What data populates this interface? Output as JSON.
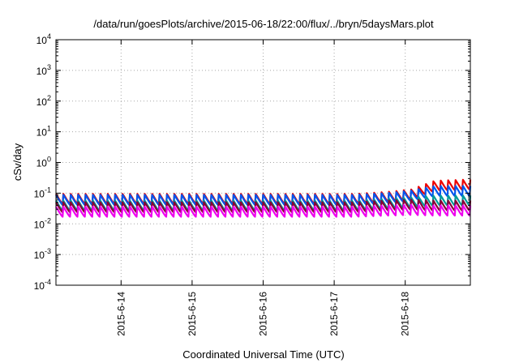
{
  "chart_data": {
    "type": "line",
    "title": "/data/run/goesPlots/archive/2015-06-18/22:00/flux/../bryn/5daysMars.plot",
    "xlabel": "Coordinated Universal Time (UTC)",
    "ylabel": "cSv/day",
    "yscale": "log",
    "ylim": [
      0.0001,
      10000
    ],
    "xlim": [
      "2015-06-13 02:00",
      "2015-06-18 22:00"
    ],
    "y_ticks": [
      {
        "base": "10",
        "exp": "-4"
      },
      {
        "base": "10",
        "exp": "-3"
      },
      {
        "base": "10",
        "exp": "-2"
      },
      {
        "base": "10",
        "exp": "-1"
      },
      {
        "base": "10",
        "exp": "0"
      },
      {
        "base": "10",
        "exp": "1"
      },
      {
        "base": "10",
        "exp": "2"
      },
      {
        "base": "10",
        "exp": "3"
      },
      {
        "base": "10",
        "exp": "4"
      }
    ],
    "x_ticks": [
      "2015-6-14",
      "2015-6-15",
      "2015-6-16",
      "2015-6-17",
      "2015-6-18"
    ],
    "grid": true,
    "sawtooth_period_hours": 2.5,
    "sawtooth_peak_ratio": 2.2,
    "series": [
      {
        "color": "#ee0000",
        "base": [
          [
            0,
            0.043
          ],
          [
            101,
            0.043
          ],
          [
            112,
            0.05
          ],
          [
            120,
            0.06
          ],
          [
            128,
            0.115
          ],
          [
            143,
            0.13
          ]
        ]
      },
      {
        "color": "#0055ee",
        "base": [
          [
            0,
            0.04
          ],
          [
            101,
            0.04
          ],
          [
            112,
            0.046
          ],
          [
            120,
            0.055
          ],
          [
            128,
            0.078
          ],
          [
            143,
            0.078
          ]
        ]
      },
      {
        "color": "#009b9b",
        "base": [
          [
            0,
            0.026
          ],
          [
            101,
            0.026
          ],
          [
            112,
            0.03
          ],
          [
            120,
            0.033
          ],
          [
            128,
            0.038
          ],
          [
            143,
            0.038
          ]
        ]
      },
      {
        "color": "#880033",
        "base": [
          [
            0,
            0.023
          ],
          [
            101,
            0.023
          ],
          [
            112,
            0.026
          ],
          [
            120,
            0.028
          ],
          [
            128,
            0.026
          ],
          [
            143,
            0.026
          ]
        ]
      },
      {
        "color": "#ee00ee",
        "base": [
          [
            0,
            0.0165
          ],
          [
            101,
            0.0165
          ],
          [
            112,
            0.018
          ],
          [
            120,
            0.019
          ],
          [
            128,
            0.018
          ],
          [
            143,
            0.018
          ]
        ]
      }
    ]
  }
}
